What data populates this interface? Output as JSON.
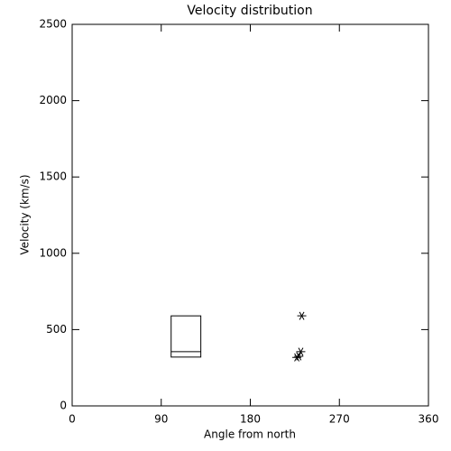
{
  "chart_data": {
    "type": "scatter",
    "title": "Velocity distribution",
    "x_label": "Angle from north",
    "y_label": "Velocity (km/s)",
    "xlim": [
      0,
      360
    ],
    "xticks": [
      0,
      90,
      180,
      270,
      360
    ],
    "ylim": [
      0,
      2500
    ],
    "yticks": [
      0,
      500,
      1000,
      1500,
      2000,
      2500
    ],
    "color": "#000000",
    "x": [
      232,
      231,
      229,
      227
    ],
    "values": [
      590,
      355,
      325,
      318
    ],
    "box": {
      "x": [
        100,
        130
      ],
      "lower": 320,
      "median": 355,
      "upper": 590
    }
  }
}
